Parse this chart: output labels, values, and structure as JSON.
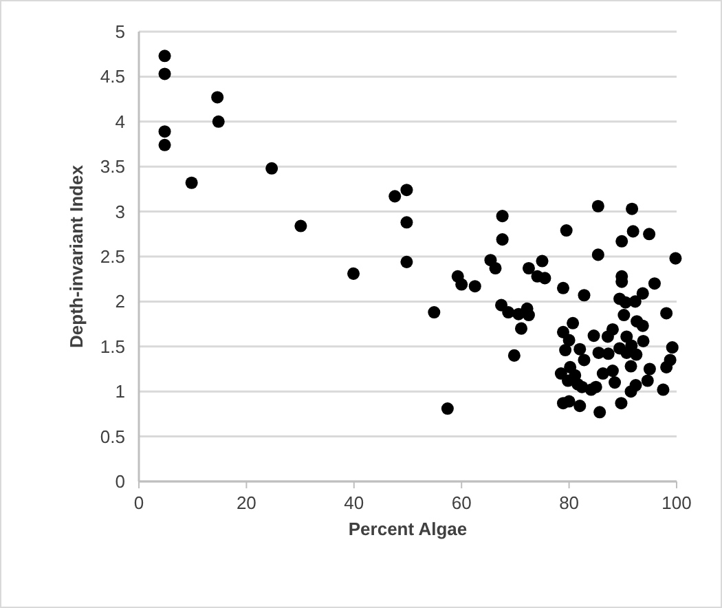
{
  "chart_data": {
    "type": "scatter",
    "xlabel": "Percent Algae",
    "ylabel": "Depth-invariant Index",
    "xlim": [
      0,
      100
    ],
    "ylim": [
      0,
      5
    ],
    "xticks": [
      0,
      20,
      40,
      60,
      80,
      100
    ],
    "yticks": [
      0,
      0.5,
      1,
      1.5,
      2,
      2.5,
      3,
      3.5,
      4,
      4.5,
      5
    ],
    "grid": "y",
    "marker": "circle",
    "series": [
      {
        "color": "#000000",
        "x": [
          4.8,
          4.8,
          4.8,
          4.8,
          9.8,
          14.6,
          14.8,
          24.7,
          30.1,
          39.9,
          47.6,
          49.8,
          49.8,
          49.8,
          54.9,
          57.4,
          59.3,
          60,
          62.5,
          65.4,
          66.3,
          67.6,
          67.6,
          67.4,
          68.7,
          69.8,
          71.1,
          70.6,
          72.2,
          72.5,
          72.5,
          75,
          74.1,
          75.5,
          78.9,
          79.5,
          82.8,
          85.4,
          85.4,
          91.7,
          91.9,
          89.8,
          94.9,
          99.8,
          89.8,
          89.8,
          95.9,
          89.4,
          90.5,
          92.3,
          93.7,
          90.2,
          98.1,
          92.6,
          93.7,
          80.7,
          78.9,
          80,
          84.6,
          88.1,
          87.2,
          90.7,
          89.4,
          79.3,
          82,
          82.8,
          85.5,
          87.3,
          91.6,
          93.8,
          92.5,
          99.2,
          98.8,
          98.1,
          78.5,
          80.2,
          79.8,
          81.1,
          82.4,
          84.1,
          85,
          86.3,
          88.1,
          88.5,
          91.5,
          95,
          94.6,
          92.4,
          91.5,
          97.5,
          78.9,
          80,
          82,
          85.7,
          89.7,
          81.6,
          90.7
        ],
        "values": [
          4.73,
          4.53,
          3.89,
          3.74,
          3.32,
          4.27,
          4,
          3.48,
          2.84,
          2.31,
          3.17,
          3.24,
          2.88,
          2.44,
          1.88,
          0.81,
          2.28,
          2.19,
          2.17,
          2.46,
          2.37,
          2.95,
          2.69,
          1.96,
          1.88,
          1.4,
          1.7,
          1.86,
          1.92,
          1.85,
          2.37,
          2.45,
          2.28,
          2.26,
          2.15,
          2.79,
          2.07,
          3.06,
          2.52,
          3.03,
          2.78,
          2.67,
          2.75,
          2.48,
          2.28,
          2.22,
          2.2,
          2.03,
          1.99,
          2,
          2.09,
          1.85,
          1.87,
          1.78,
          1.73,
          1.76,
          1.66,
          1.57,
          1.62,
          1.69,
          1.61,
          1.61,
          1.48,
          1.46,
          1.47,
          1.35,
          1.43,
          1.42,
          1.51,
          1.56,
          1.41,
          1.49,
          1.35,
          1.27,
          1.2,
          1.27,
          1.12,
          1.18,
          1.05,
          1.02,
          1.05,
          1.2,
          1.23,
          1.1,
          1.28,
          1.25,
          1.12,
          1.07,
          1,
          1.02,
          0.87,
          0.89,
          0.84,
          0.77,
          0.87,
          1.08,
          1.43
        ]
      }
    ]
  }
}
